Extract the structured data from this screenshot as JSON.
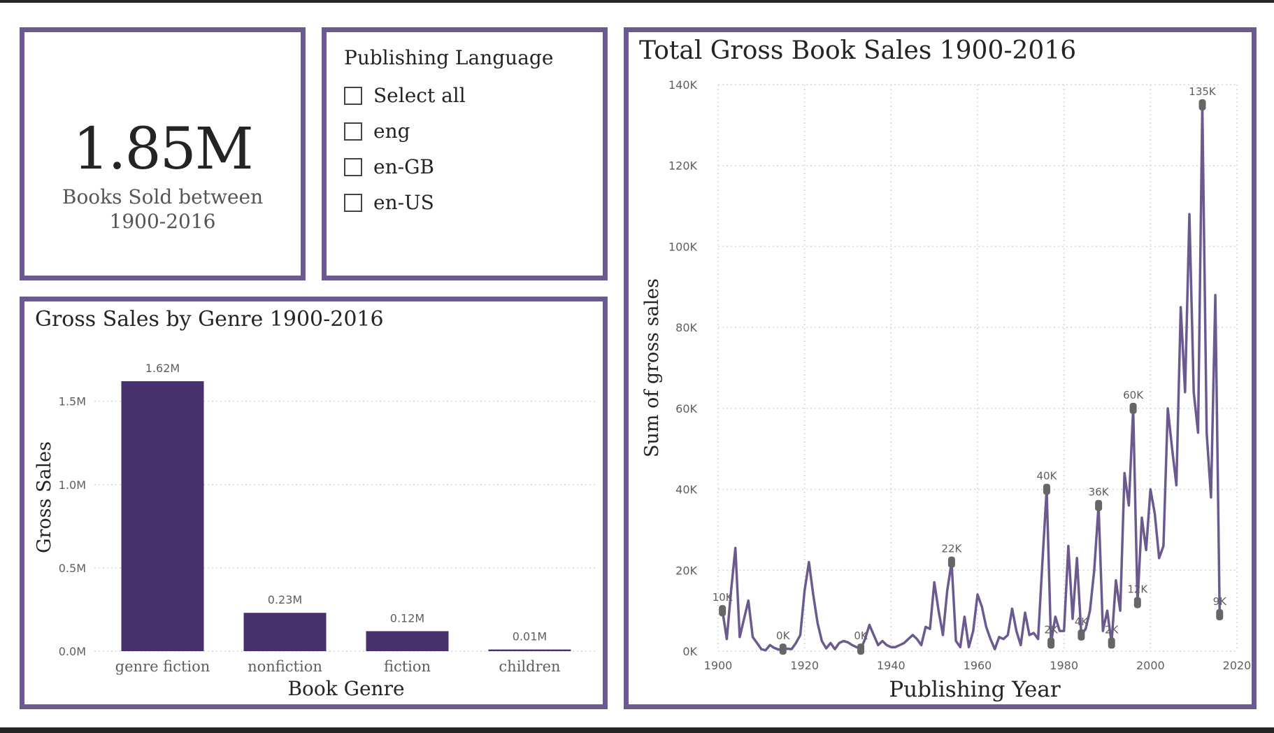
{
  "kpi": {
    "value": "1.85M",
    "label": "Books Sold between 1900-2016"
  },
  "slicer": {
    "title": "Publishing Language",
    "options": [
      "Select all",
      "eng",
      "en-GB",
      "en-US"
    ]
  },
  "colors": {
    "accent": "#6b5a90",
    "bar": "#46306e",
    "line": "#6b5a90",
    "marker": "#666666",
    "gridline": "#d6d6d6",
    "tick_text": "#605e5c"
  },
  "chart_data": [
    {
      "type": "bar",
      "title": "Gross Sales by Genre 1900-2016",
      "xlabel": "Book Genre",
      "ylabel": "Gross Sales",
      "categories": [
        "genre fiction",
        "nonfiction",
        "fiction",
        "children"
      ],
      "values": [
        1.62,
        0.23,
        0.12,
        0.01
      ],
      "data_labels": [
        "1.62M",
        "0.23M",
        "0.12M",
        "0.01M"
      ],
      "yticks": [
        0,
        0.5,
        1.0,
        1.5
      ],
      "ytick_labels": [
        "0.0M",
        "0.5M",
        "1.0M",
        "1.5M"
      ],
      "ylim": [
        0,
        1.7
      ],
      "grid": true
    },
    {
      "type": "line",
      "title": "Total Gross Book Sales 1900-2016",
      "xlabel": "Publishing Year",
      "ylabel": "Sum of gross sales",
      "xlim": [
        1900,
        2020
      ],
      "ylim": [
        0,
        140000
      ],
      "xticks": [
        1900,
        1920,
        1940,
        1960,
        1980,
        2000,
        2020
      ],
      "yticks": [
        0,
        20000,
        40000,
        60000,
        80000,
        100000,
        120000,
        140000
      ],
      "ytick_labels": [
        "0K",
        "20K",
        "40K",
        "60K",
        "80K",
        "100K",
        "120K",
        "140K"
      ],
      "grid": true,
      "x": [
        1901,
        1902,
        1903,
        1904,
        1905,
        1906,
        1907,
        1908,
        1909,
        1910,
        1911,
        1912,
        1913,
        1914,
        1915,
        1916,
        1917,
        1918,
        1919,
        1920,
        1921,
        1922,
        1923,
        1924,
        1925,
        1926,
        1927,
        1928,
        1929,
        1930,
        1931,
        1932,
        1933,
        1934,
        1935,
        1936,
        1937,
        1938,
        1939,
        1940,
        1941,
        1942,
        1943,
        1944,
        1945,
        1946,
        1947,
        1948,
        1949,
        1950,
        1951,
        1952,
        1953,
        1954,
        1955,
        1956,
        1957,
        1958,
        1959,
        1960,
        1961,
        1962,
        1963,
        1964,
        1965,
        1966,
        1967,
        1968,
        1969,
        1970,
        1971,
        1972,
        1973,
        1974,
        1975,
        1976,
        1977,
        1978,
        1979,
        1980,
        1981,
        1982,
        1983,
        1984,
        1985,
        1986,
        1987,
        1988,
        1989,
        1990,
        1991,
        1992,
        1993,
        1994,
        1995,
        1996,
        1997,
        1998,
        1999,
        2000,
        2001,
        2002,
        2003,
        2004,
        2005,
        2006,
        2007,
        2008,
        2009,
        2010,
        2011,
        2012,
        2013,
        2014,
        2015,
        2016
      ],
      "y": [
        10000,
        3000,
        15000,
        25500,
        3500,
        8000,
        12500,
        3500,
        2000,
        500,
        200,
        1500,
        800,
        400,
        500,
        600,
        500,
        2000,
        4000,
        15000,
        22000,
        14000,
        7000,
        2500,
        700,
        2000,
        500,
        2000,
        2500,
        2200,
        1500,
        1000,
        500,
        3000,
        6500,
        4000,
        1500,
        2500,
        1500,
        1000,
        1000,
        1500,
        2000,
        3000,
        4000,
        3000,
        1500,
        6000,
        5500,
        17000,
        10000,
        4000,
        15000,
        22000,
        2500,
        1000,
        8500,
        1000,
        5000,
        14000,
        11000,
        6000,
        3000,
        500,
        3500,
        3000,
        4000,
        10500,
        5000,
        1500,
        9500,
        4000,
        4500,
        3000,
        22000,
        40000,
        2000,
        8500,
        5000,
        5000,
        26000,
        8000,
        23000,
        4000,
        5500,
        10000,
        20000,
        36000,
        5000,
        10000,
        2000,
        17500,
        10000,
        44000,
        36000,
        60000,
        12000,
        33000,
        25000,
        40000,
        34000,
        23000,
        26000,
        60000,
        50000,
        41000,
        85000,
        64000,
        108000,
        64000,
        54000,
        135000,
        54000,
        38000,
        88000,
        9000
      ],
      "point_labels": [
        {
          "x": 1901,
          "y": 10000,
          "label": "10K"
        },
        {
          "x": 1915,
          "y": 500,
          "label": "0K"
        },
        {
          "x": 1933,
          "y": 500,
          "label": "0K"
        },
        {
          "x": 1954,
          "y": 22000,
          "label": "22K"
        },
        {
          "x": 1976,
          "y": 40000,
          "label": "40K"
        },
        {
          "x": 1977,
          "y": 2000,
          "label": "2K"
        },
        {
          "x": 1984,
          "y": 4000,
          "label": "4K"
        },
        {
          "x": 1988,
          "y": 36000,
          "label": "36K"
        },
        {
          "x": 1991,
          "y": 2000,
          "label": "2K"
        },
        {
          "x": 1996,
          "y": 60000,
          "label": "60K"
        },
        {
          "x": 1997,
          "y": 12000,
          "label": "12K"
        },
        {
          "x": 2012,
          "y": 135000,
          "label": "135K"
        },
        {
          "x": 2016,
          "y": 9000,
          "label": "9K"
        }
      ]
    }
  ]
}
